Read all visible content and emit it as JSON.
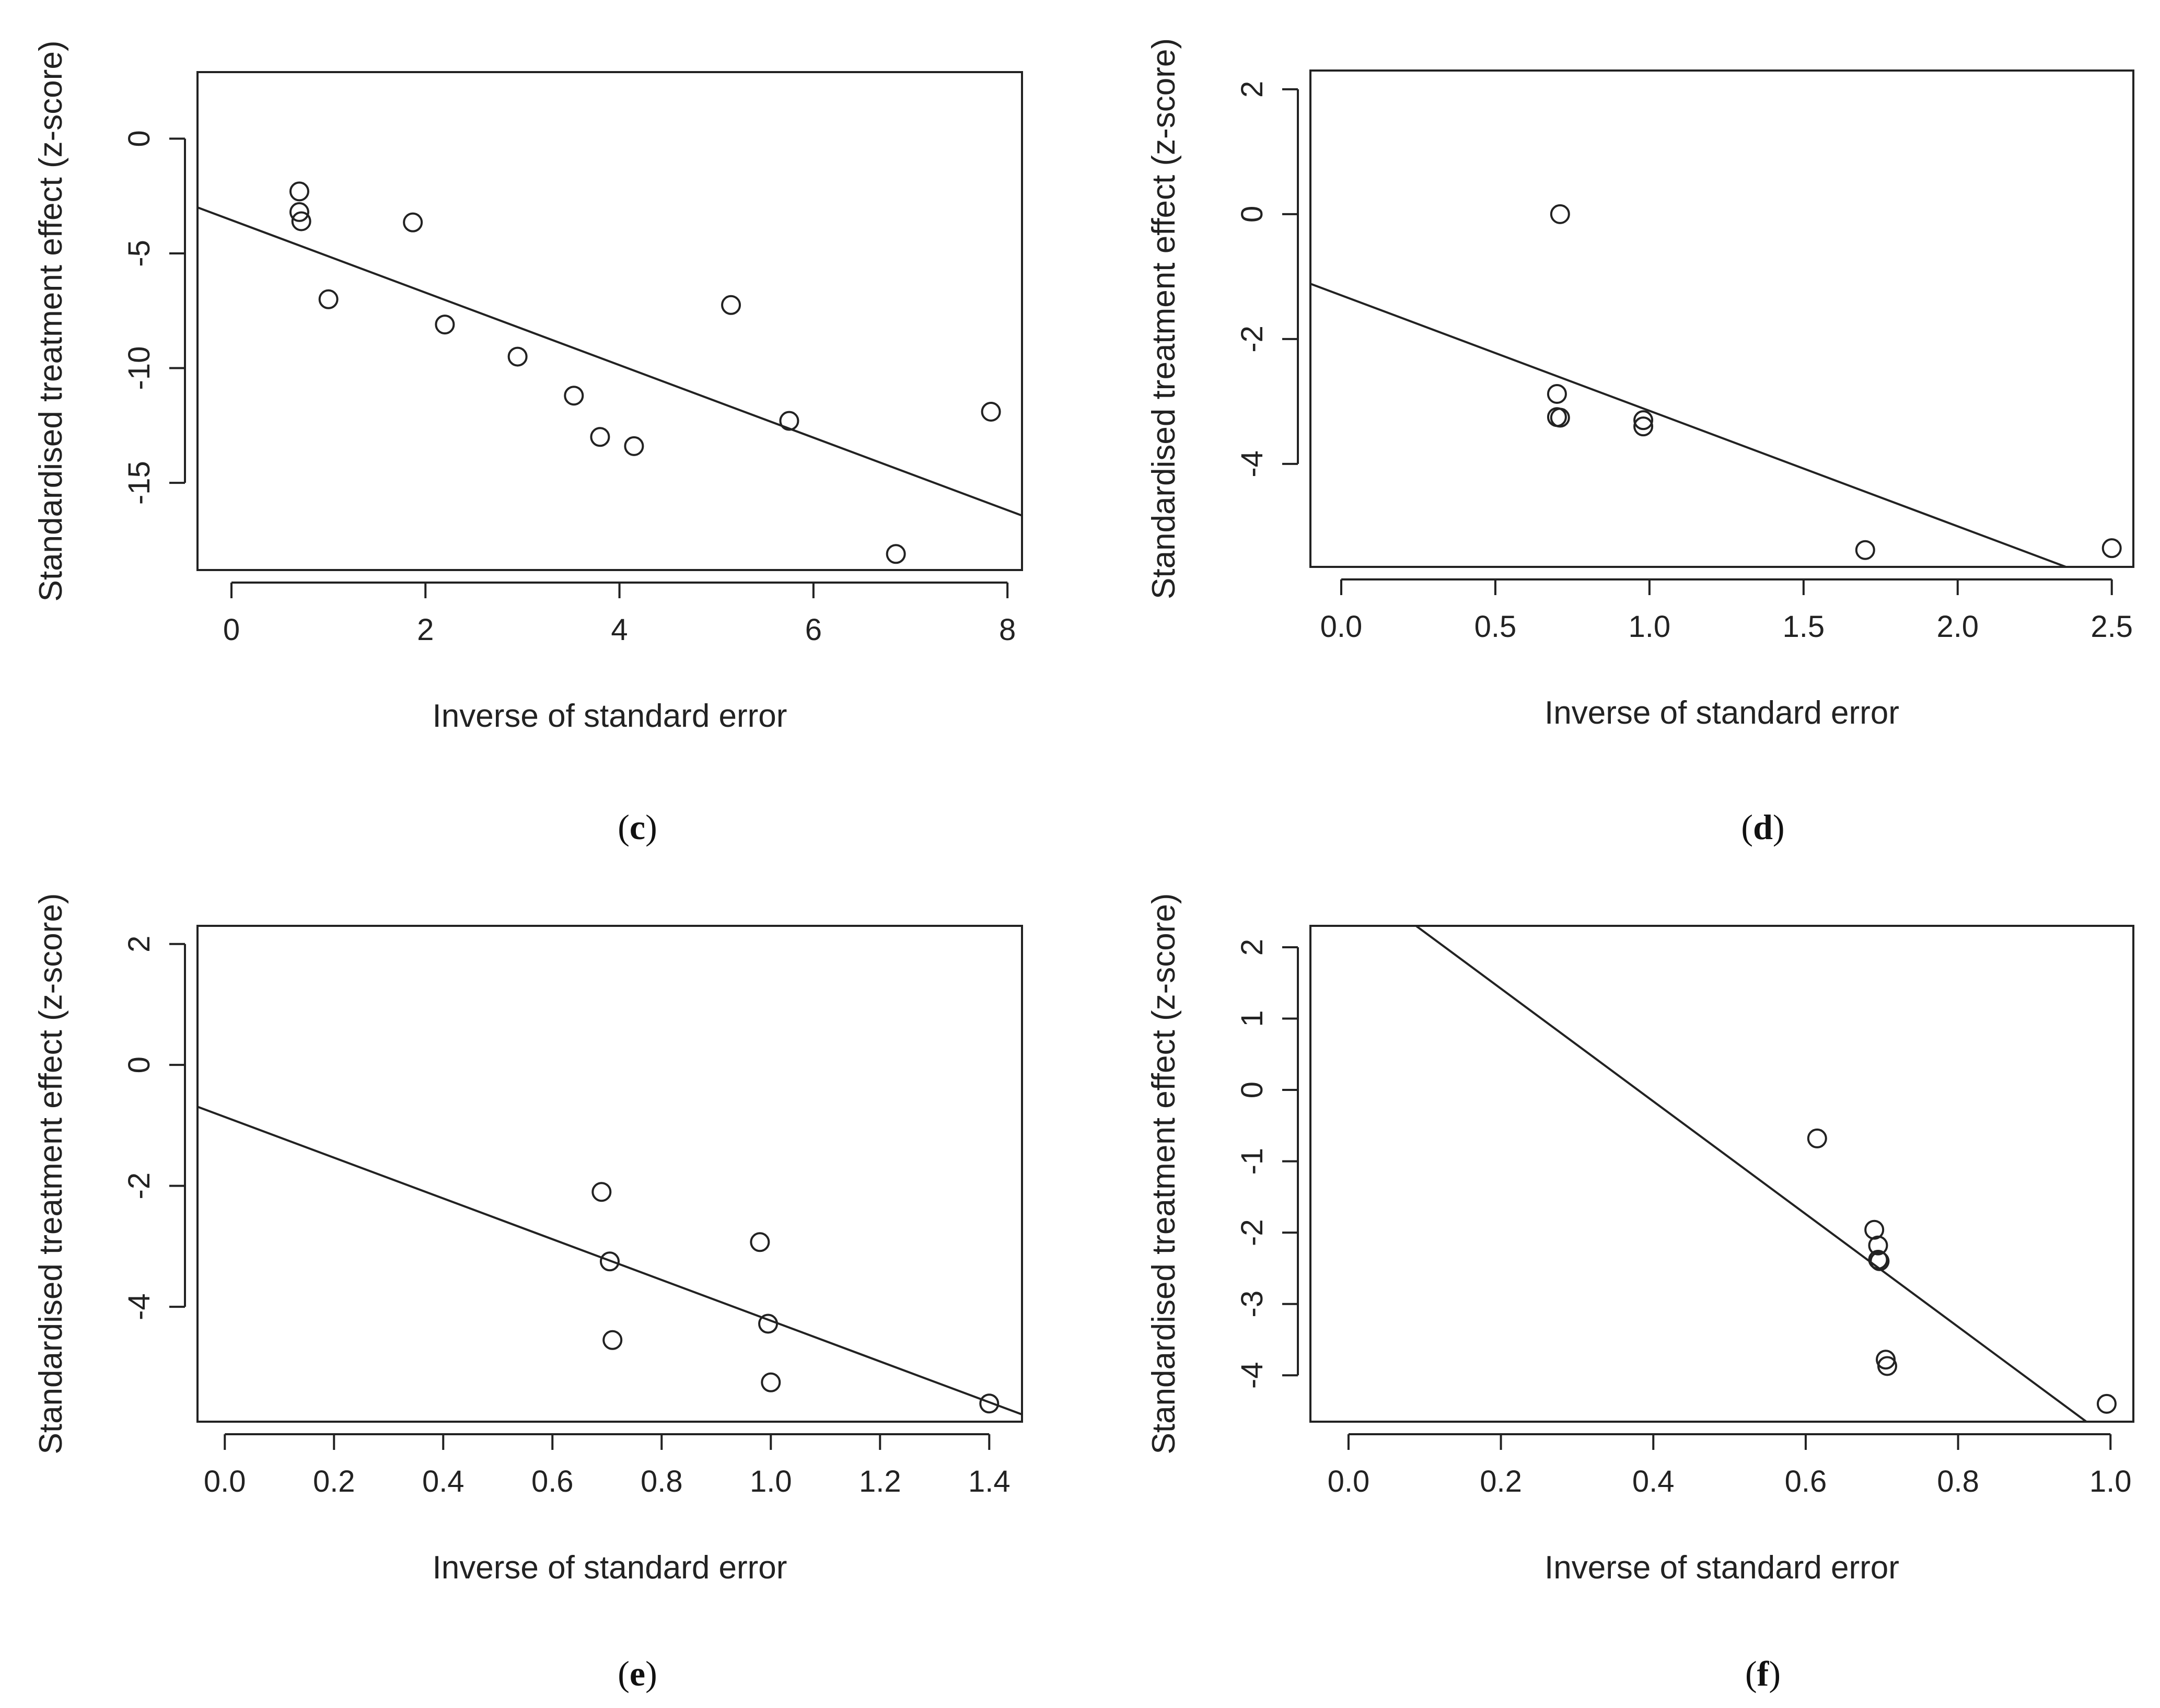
{
  "colors": {
    "ink": "#222222",
    "background": "#ffffff"
  },
  "charts": [
    {
      "id": "c",
      "caption_letter": "c",
      "type": "scatter",
      "xlabel": "Inverse of standard error",
      "ylabel": "Standardised treatment effect (z-score)",
      "xlim": [
        -0.35,
        8.15
      ],
      "ylim": [
        -18.8,
        2.9
      ],
      "xticks": [
        0,
        2,
        4,
        6,
        8
      ],
      "xtick_labels": [
        "0",
        "2",
        "4",
        "6",
        "8"
      ],
      "yticks": [
        0,
        -5,
        -10,
        -15
      ],
      "ytick_labels": [
        "0",
        "-5",
        "-10",
        "-15"
      ],
      "points": [
        {
          "x": 0.7,
          "y": -2.3
        },
        {
          "x": 0.7,
          "y": -3.2
        },
        {
          "x": 0.72,
          "y": -3.6
        },
        {
          "x": 1.0,
          "y": -7.0
        },
        {
          "x": 1.87,
          "y": -3.65
        },
        {
          "x": 2.2,
          "y": -8.1
        },
        {
          "x": 2.95,
          "y": -9.5
        },
        {
          "x": 3.53,
          "y": -11.2
        },
        {
          "x": 3.8,
          "y": -13.0
        },
        {
          "x": 4.15,
          "y": -13.4
        },
        {
          "x": 5.15,
          "y": -7.25
        },
        {
          "x": 5.75,
          "y": -12.3
        },
        {
          "x": 6.85,
          "y": -18.1
        },
        {
          "x": 7.83,
          "y": -11.9
        }
      ],
      "regression": {
        "intercept": -3.55,
        "slope": -1.58
      }
    },
    {
      "id": "d",
      "caption_letter": "d",
      "type": "scatter",
      "xlabel": "Inverse of standard error",
      "ylabel": "Standardised treatment effect (z-score)",
      "xlim": [
        -0.1,
        2.57
      ],
      "ylim": [
        -5.65,
        2.3
      ],
      "xticks": [
        0,
        0.5,
        1,
        1.5,
        2,
        2.5
      ],
      "xtick_labels": [
        "0.0",
        "0.5",
        "1.0",
        "1.5",
        "2.0",
        "2.5"
      ],
      "yticks": [
        2,
        0,
        -2,
        -4
      ],
      "ytick_labels": [
        "2",
        "0",
        "-2",
        "-4"
      ],
      "points": [
        {
          "x": 0.71,
          "y": 0.0
        },
        {
          "x": 0.7,
          "y": -2.88
        },
        {
          "x": 0.7,
          "y": -3.25
        },
        {
          "x": 0.71,
          "y": -3.26
        },
        {
          "x": 0.98,
          "y": -3.3
        },
        {
          "x": 0.98,
          "y": -3.4
        },
        {
          "x": 1.7,
          "y": -5.38
        },
        {
          "x": 2.5,
          "y": -5.35
        }
      ],
      "regression": {
        "intercept": -1.3,
        "slope": -1.85
      }
    },
    {
      "id": "e",
      "caption_letter": "e",
      "type": "scatter",
      "xlabel": "Inverse of standard error",
      "ylabel": "Standardised treatment effect (z-score)",
      "xlim": [
        -0.05,
        1.46
      ],
      "ylim": [
        -5.9,
        2.3
      ],
      "xticks": [
        0,
        0.2,
        0.4,
        0.6,
        0.8,
        1,
        1.2,
        1.4
      ],
      "xtick_labels": [
        "0.0",
        "0.2",
        "0.4",
        "0.6",
        "0.8",
        "1.0",
        "1.2",
        "1.4"
      ],
      "yticks": [
        2,
        0,
        -2,
        -4
      ],
      "ytick_labels": [
        "2",
        "0",
        "-2",
        "-4"
      ],
      "points": [
        {
          "x": 0.69,
          "y": -2.1
        },
        {
          "x": 0.705,
          "y": -3.25
        },
        {
          "x": 0.71,
          "y": -4.55
        },
        {
          "x": 0.98,
          "y": -2.93
        },
        {
          "x": 0.995,
          "y": -4.28
        },
        {
          "x": 1.0,
          "y": -5.25
        },
        {
          "x": 1.4,
          "y": -5.6
        }
      ],
      "regression": {
        "intercept": -0.86,
        "slope": -3.37
      }
    },
    {
      "id": "f",
      "caption_letter": "f",
      "type": "scatter",
      "xlabel": "Inverse of standard error",
      "ylabel": "Standardised treatment effect (z-score)",
      "xlim": [
        -0.05,
        1.03
      ],
      "ylim": [
        -4.65,
        2.3
      ],
      "xticks": [
        0,
        0.2,
        0.4,
        0.6,
        0.8,
        1
      ],
      "xtick_labels": [
        "0.0",
        "0.2",
        "0.4",
        "0.6",
        "0.8",
        "1.0"
      ],
      "yticks": [
        2,
        1,
        0,
        -1,
        -2,
        -3,
        -4
      ],
      "ytick_labels": [
        "2",
        "1",
        "0",
        "-1",
        "-2",
        "-3",
        "-4"
      ],
      "points": [
        {
          "x": 0.615,
          "y": -0.68
        },
        {
          "x": 0.69,
          "y": -1.96
        },
        {
          "x": 0.695,
          "y": -2.18
        },
        {
          "x": 0.695,
          "y": -2.38
        },
        {
          "x": 0.697,
          "y": -2.4
        },
        {
          "x": 0.705,
          "y": -3.78
        },
        {
          "x": 0.707,
          "y": -3.87
        },
        {
          "x": 0.995,
          "y": -4.4
        }
      ],
      "regression": {
        "intercept": 3.0,
        "slope": -7.9
      }
    }
  ]
}
